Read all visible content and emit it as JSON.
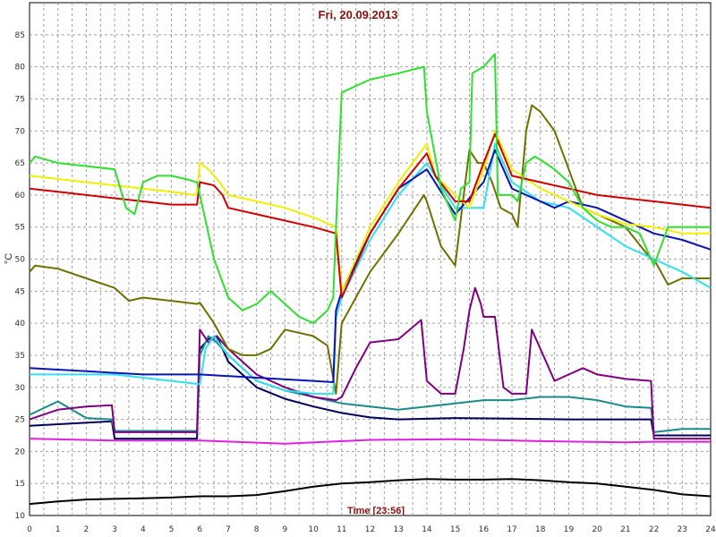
{
  "chart_data": {
    "type": "line",
    "title": "Fri, 20.09.2013",
    "xlabel": "Time [23:56]",
    "ylabel": "°C",
    "xlim": [
      0,
      24
    ],
    "ylim": [
      10,
      90
    ],
    "x_ticks": [
      "0",
      "1",
      "2",
      "3",
      "4",
      "5",
      "6",
      "7",
      "8",
      "9",
      "10",
      "11",
      "12",
      "13",
      "14",
      "15",
      "16",
      "17",
      "18",
      "19",
      "20",
      "21",
      "22",
      "23",
      "24"
    ],
    "y_ticks": [
      "10",
      "15",
      "20",
      "25",
      "30",
      "35",
      "40",
      "45",
      "50",
      "55",
      "60",
      "65",
      "70",
      "75",
      "80",
      "85"
    ],
    "grid": true,
    "series": [
      {
        "color": "#000000",
        "x": [
          0,
          1,
          2,
          3,
          4,
          5,
          6,
          7,
          8,
          9,
          10,
          11,
          12,
          13,
          14,
          15,
          16,
          17,
          18,
          19,
          20,
          21,
          22,
          23,
          24
        ],
        "y": [
          11.8,
          12.2,
          12.5,
          12.6,
          12.7,
          12.8,
          13,
          13,
          13.2,
          13.8,
          14.5,
          15,
          15.2,
          15.5,
          15.7,
          15.6,
          15.6,
          15.7,
          15.5,
          15.2,
          15,
          14.5,
          14,
          13.3,
          13
        ]
      },
      {
        "color": "#e020e0",
        "x": [
          0,
          3,
          6,
          9,
          12,
          15,
          18,
          21,
          22,
          24
        ],
        "y": [
          22,
          21.7,
          21.7,
          21.2,
          21.8,
          21.9,
          21.6,
          21.4,
          21.5,
          21.5
        ]
      },
      {
        "color": "#00005a",
        "x": [
          0,
          2.9,
          3,
          5.9,
          6,
          6.3,
          6.6,
          7,
          8,
          9,
          10,
          11,
          12,
          13,
          15,
          17,
          19,
          21,
          21.9,
          22,
          23,
          24
        ],
        "y": [
          24,
          24.7,
          22,
          22,
          36,
          37.5,
          38,
          34,
          30,
          28.2,
          27,
          26,
          25.3,
          25,
          25.2,
          25.1,
          25,
          25,
          25,
          22.5,
          22.5,
          22.5
        ]
      },
      {
        "color": "#1a8a8a",
        "x": [
          0,
          1,
          2,
          2.9,
          3,
          5.9,
          6,
          6.3,
          6.6,
          7,
          8,
          9,
          10,
          11,
          12,
          13,
          14,
          15,
          16,
          17,
          18,
          19,
          20,
          21,
          21.9,
          22,
          23,
          24
        ],
        "y": [
          25.7,
          27.8,
          25.2,
          25,
          23.2,
          23.2,
          35,
          38,
          37,
          35,
          31,
          29.5,
          28.5,
          27.5,
          27,
          26.5,
          27,
          27.5,
          28,
          28,
          28.5,
          28.5,
          28,
          27,
          26.8,
          23,
          23.5,
          23.5
        ]
      },
      {
        "color": "#800080",
        "x": [
          0,
          1,
          2,
          2.9,
          3,
          5.9,
          6,
          6.3,
          6.6,
          7,
          8,
          9,
          10,
          10.8,
          11,
          11.5,
          12,
          13,
          13.8,
          14,
          14.5,
          15,
          15.3,
          15.5,
          15.7,
          15.9,
          16,
          16.4,
          16.7,
          17,
          17.5,
          17.7,
          18,
          18.5,
          19,
          19.5,
          20,
          21,
          21.9,
          22,
          23,
          24
        ],
        "y": [
          25,
          26.5,
          27,
          27.2,
          23,
          23,
          39,
          37,
          38,
          36,
          32,
          30,
          28.5,
          28,
          28.5,
          33,
          37,
          37.5,
          40.5,
          31,
          29,
          29,
          36,
          42,
          45.5,
          43,
          41,
          41,
          30,
          29,
          29,
          39,
          36,
          31,
          32,
          33,
          32,
          31.3,
          31,
          22,
          22,
          22
        ]
      },
      {
        "color": "#707000",
        "x": [
          0,
          0.2,
          1,
          2,
          3,
          3.5,
          4,
          5,
          5.9,
          6,
          6.5,
          7,
          7.5,
          8,
          8.5,
          9,
          10,
          10.5,
          10.8,
          11,
          12,
          13,
          13.9,
          14,
          14.5,
          15,
          15.3,
          15.5,
          15.8,
          16,
          16.3,
          16.6,
          17,
          17.2,
          17.5,
          17.7,
          18,
          18.5,
          19,
          19.5,
          20,
          21,
          21.9,
          22,
          22.5,
          23,
          24
        ],
        "y": [
          48,
          49,
          48.5,
          47,
          45.5,
          43.5,
          44,
          43.5,
          43,
          43.2,
          40,
          36,
          35,
          35,
          36,
          39,
          38,
          36.5,
          29,
          40,
          48,
          54,
          60,
          59,
          52,
          49,
          60,
          67,
          65,
          65,
          62,
          58,
          57,
          55,
          70,
          74,
          73,
          70,
          64,
          58,
          57,
          55,
          50,
          50,
          46,
          47,
          47
        ]
      },
      {
        "color": "#30e0f0",
        "x": [
          0,
          2,
          3,
          5,
          6,
          6.2,
          6.5,
          7,
          8,
          9,
          10,
          10.7,
          10.8,
          11,
          12,
          13,
          14,
          15,
          16,
          16.4,
          17,
          18,
          19,
          20,
          21,
          22,
          23,
          24
        ],
        "y": [
          32,
          32,
          32,
          31,
          30.5,
          36,
          38,
          35,
          31,
          29.5,
          29,
          29,
          41,
          44,
          53,
          60,
          65,
          58,
          58,
          68,
          62,
          59,
          58,
          55,
          52,
          50,
          48,
          45.5
        ]
      },
      {
        "color": "#0a14b4",
        "x": [
          0,
          2,
          4,
          6,
          8,
          10,
          10.7,
          10.8,
          11,
          12,
          13,
          14,
          15,
          16,
          16.4,
          17,
          18,
          18.5,
          19,
          20,
          21,
          22,
          23,
          24
        ],
        "y": [
          33,
          32.5,
          32,
          32,
          31.5,
          31,
          30.8,
          42,
          45,
          54,
          61,
          64,
          57,
          62,
          67,
          61,
          59,
          58,
          59,
          58,
          56,
          54,
          53,
          51.5
        ]
      },
      {
        "color": "#f0f000",
        "x": [
          0,
          2,
          4,
          5,
          5.8,
          5.9,
          6,
          6.3,
          6.7,
          7,
          8,
          9,
          10,
          10.8,
          11,
          12,
          13,
          14,
          14.3,
          15,
          15.5,
          16,
          16.4,
          17,
          18,
          19,
          20,
          21,
          22,
          23,
          24
        ],
        "y": [
          63,
          62,
          61,
          60.5,
          60,
          60.5,
          65,
          64,
          62,
          60,
          59,
          58,
          56.5,
          55,
          45,
          55,
          62,
          68,
          63,
          60,
          58,
          64,
          70,
          64,
          61,
          59,
          57,
          55.5,
          55,
          54,
          54
        ]
      },
      {
        "color": "#d00000",
        "x": [
          0,
          1,
          2,
          3,
          4,
          5,
          5.9,
          6,
          6.5,
          6.8,
          7,
          8,
          9,
          10,
          10.8,
          11,
          12,
          13,
          14,
          14.3,
          15,
          15.5,
          16,
          16.4,
          17,
          18,
          19,
          20,
          21,
          22,
          23,
          24
        ],
        "y": [
          61,
          60.5,
          60,
          59.5,
          59,
          58.5,
          58.5,
          62,
          61.5,
          60,
          58,
          57,
          56,
          55,
          54,
          44,
          54,
          61,
          66.5,
          63,
          59,
          59,
          65,
          69.5,
          63,
          62,
          61,
          60,
          59.5,
          59,
          58.5,
          58
        ]
      },
      {
        "color": "#30e030",
        "x": [
          0,
          0.1,
          0.2,
          1,
          2,
          3,
          3.4,
          3.7,
          4,
          4.5,
          5,
          5.5,
          5.9,
          6,
          6.5,
          7,
          7.5,
          8,
          8.5,
          9,
          9.5,
          10,
          10.5,
          10.7,
          10.8,
          11,
          12,
          13,
          13.9,
          14,
          14.5,
          15,
          15.2,
          15.5,
          15.6,
          16,
          16.4,
          16.5,
          17,
          17.2,
          17.5,
          17.8,
          18,
          18.5,
          19,
          19.5,
          20,
          20.5,
          21,
          21.5,
          22,
          22.5,
          23,
          24
        ],
        "y": [
          65,
          65.5,
          66,
          65,
          64.5,
          64,
          58,
          57,
          62,
          63,
          63,
          62.5,
          62,
          60,
          50,
          44,
          42,
          43,
          45,
          43,
          41,
          40,
          42,
          44,
          55,
          76,
          78,
          79,
          80,
          73,
          61,
          56,
          61,
          62,
          79,
          80,
          82,
          60,
          60,
          59,
          65,
          66,
          65.5,
          64,
          62,
          58,
          56,
          55,
          55,
          54,
          49,
          55,
          55,
          55
        ]
      }
    ]
  }
}
